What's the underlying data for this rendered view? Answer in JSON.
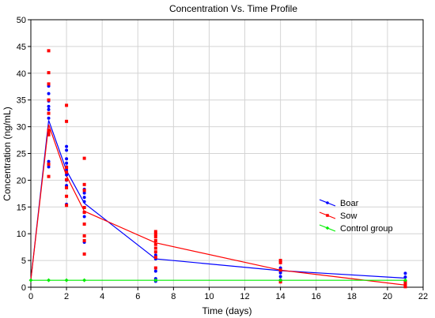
{
  "chart_data": {
    "type": "scatter",
    "title": "Concentration Vs. Time Profile",
    "xlabel": "Time (days)",
    "ylabel": "Concentration (ng/mL)",
    "xlim": [
      0,
      22
    ],
    "ylim": [
      0,
      50
    ],
    "xticks": [
      0,
      2,
      4,
      6,
      8,
      10,
      12,
      14,
      16,
      18,
      20,
      22
    ],
    "yticks": [
      0,
      5,
      10,
      15,
      20,
      25,
      30,
      35,
      40,
      45,
      50
    ],
    "grid": true,
    "legend_position": "right",
    "series": [
      {
        "name": "Boar",
        "color": "#0000ff",
        "marker": "circle",
        "mean_line": {
          "x": [
            0,
            1,
            2,
            3,
            7,
            14,
            21
          ],
          "y": [
            1.4,
            31.2,
            21.8,
            15.7,
            5.3,
            3.1,
            1.7
          ]
        },
        "points": [
          [
            1,
            37.6
          ],
          [
            1,
            36.2
          ],
          [
            1,
            34.8
          ],
          [
            1,
            33.8
          ],
          [
            1,
            33.2
          ],
          [
            1,
            31.6
          ],
          [
            1,
            23.5
          ],
          [
            1,
            23.0
          ],
          [
            1,
            22.5
          ],
          [
            2,
            26.3
          ],
          [
            2,
            25.6
          ],
          [
            2,
            24.0
          ],
          [
            2,
            23.2
          ],
          [
            2,
            22.5
          ],
          [
            2,
            21.9
          ],
          [
            2,
            21.0
          ],
          [
            2,
            20.0
          ],
          [
            2,
            19.0
          ],
          [
            2,
            15.5
          ],
          [
            3,
            18.3
          ],
          [
            3,
            17.6
          ],
          [
            3,
            16.8
          ],
          [
            3,
            16.0
          ],
          [
            3,
            14.9
          ],
          [
            3,
            14.0
          ],
          [
            3,
            13.2
          ],
          [
            3,
            8.4
          ],
          [
            7,
            6.0
          ],
          [
            7,
            5.3
          ],
          [
            7,
            3.0
          ],
          [
            7,
            1.6
          ],
          [
            7,
            1.1
          ],
          [
            14,
            3.6
          ],
          [
            14,
            3.0
          ],
          [
            14,
            2.7
          ],
          [
            14,
            2.0
          ],
          [
            14,
            1.3
          ],
          [
            21,
            2.6
          ],
          [
            21,
            1.9
          ],
          [
            21,
            1.2
          ],
          [
            21,
            0.7
          ]
        ]
      },
      {
        "name": "Sow",
        "color": "#ff0000",
        "marker": "square",
        "mean_line": {
          "x": [
            0,
            1,
            2,
            3,
            7,
            14,
            21
          ],
          "y": [
            1.4,
            30.4,
            20.8,
            14.2,
            8.3,
            3.2,
            0.4
          ]
        },
        "points": [
          [
            1,
            44.2
          ],
          [
            1,
            40.1
          ],
          [
            1,
            38.0
          ],
          [
            1,
            35.0
          ],
          [
            1,
            32.5
          ],
          [
            1,
            29.3
          ],
          [
            1,
            29.0
          ],
          [
            1,
            28.5
          ],
          [
            1,
            23.0
          ],
          [
            1,
            20.7
          ],
          [
            2,
            34.0
          ],
          [
            2,
            31.0
          ],
          [
            2,
            22.4
          ],
          [
            2,
            21.5
          ],
          [
            2,
            20.1
          ],
          [
            2,
            18.6
          ],
          [
            2,
            17.0
          ],
          [
            2,
            15.3
          ],
          [
            3,
            24.1
          ],
          [
            3,
            19.2
          ],
          [
            3,
            18.1
          ],
          [
            3,
            14.9
          ],
          [
            3,
            14.0
          ],
          [
            3,
            11.8
          ],
          [
            3,
            9.6
          ],
          [
            3,
            8.7
          ],
          [
            3,
            6.2
          ],
          [
            7,
            10.4
          ],
          [
            7,
            9.9
          ],
          [
            7,
            9.4
          ],
          [
            7,
            8.7
          ],
          [
            7,
            8.0
          ],
          [
            7,
            7.3
          ],
          [
            7,
            6.6
          ],
          [
            7,
            5.6
          ],
          [
            7,
            3.6
          ],
          [
            14,
            5.0
          ],
          [
            14,
            4.6
          ],
          [
            14,
            3.2
          ],
          [
            14,
            1.0
          ],
          [
            21,
            1.1
          ],
          [
            21,
            0.6
          ],
          [
            21,
            0.3
          ],
          [
            21,
            0.1
          ]
        ]
      },
      {
        "name": "Control group",
        "color": "#00ee00",
        "marker": "diamond",
        "mean_line": {
          "x": [
            0,
            1,
            2,
            3,
            7,
            14,
            21
          ],
          "y": [
            1.3,
            1.3,
            1.3,
            1.3,
            1.3,
            1.3,
            1.3
          ]
        },
        "points": [
          [
            0,
            1.3
          ],
          [
            1,
            1.3
          ],
          [
            2,
            1.3
          ],
          [
            3,
            1.3
          ],
          [
            7,
            1.3
          ],
          [
            14,
            1.3
          ],
          [
            21,
            1.3
          ]
        ]
      }
    ]
  }
}
